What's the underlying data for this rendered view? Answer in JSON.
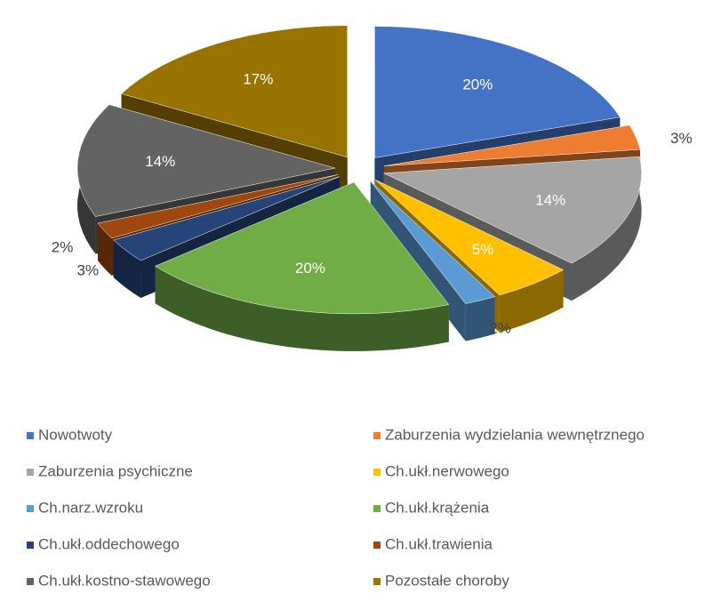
{
  "chart_data": {
    "type": "pie3d",
    "categories": [
      "Nowotwoty",
      "Zaburzenia wydzielania wewnętrznego",
      "Zaburzenia psychiczne",
      "Ch.ukł.nerwowego",
      "Ch.narz.wzroku",
      "Ch.ukł.krążenia",
      "Ch.ukł.oddechowego",
      "Ch.ukł.trawienia",
      "Ch.ukł.kostno-stawowego",
      "Pozostałe choroby"
    ],
    "values": [
      20,
      3,
      14,
      5,
      2,
      20,
      3,
      2,
      14,
      17
    ],
    "value_labels": [
      "20%",
      "3%",
      "14%",
      "5%",
      "2%",
      "20%",
      "3%",
      "2%",
      "14%",
      "17%"
    ],
    "colors": [
      "#4472c4",
      "#ed7d31",
      "#a5a5a5",
      "#ffc000",
      "#5b9bd5",
      "#70ad47",
      "#264478",
      "#9e480e",
      "#636363",
      "#997300"
    ],
    "legend": "bottom"
  }
}
